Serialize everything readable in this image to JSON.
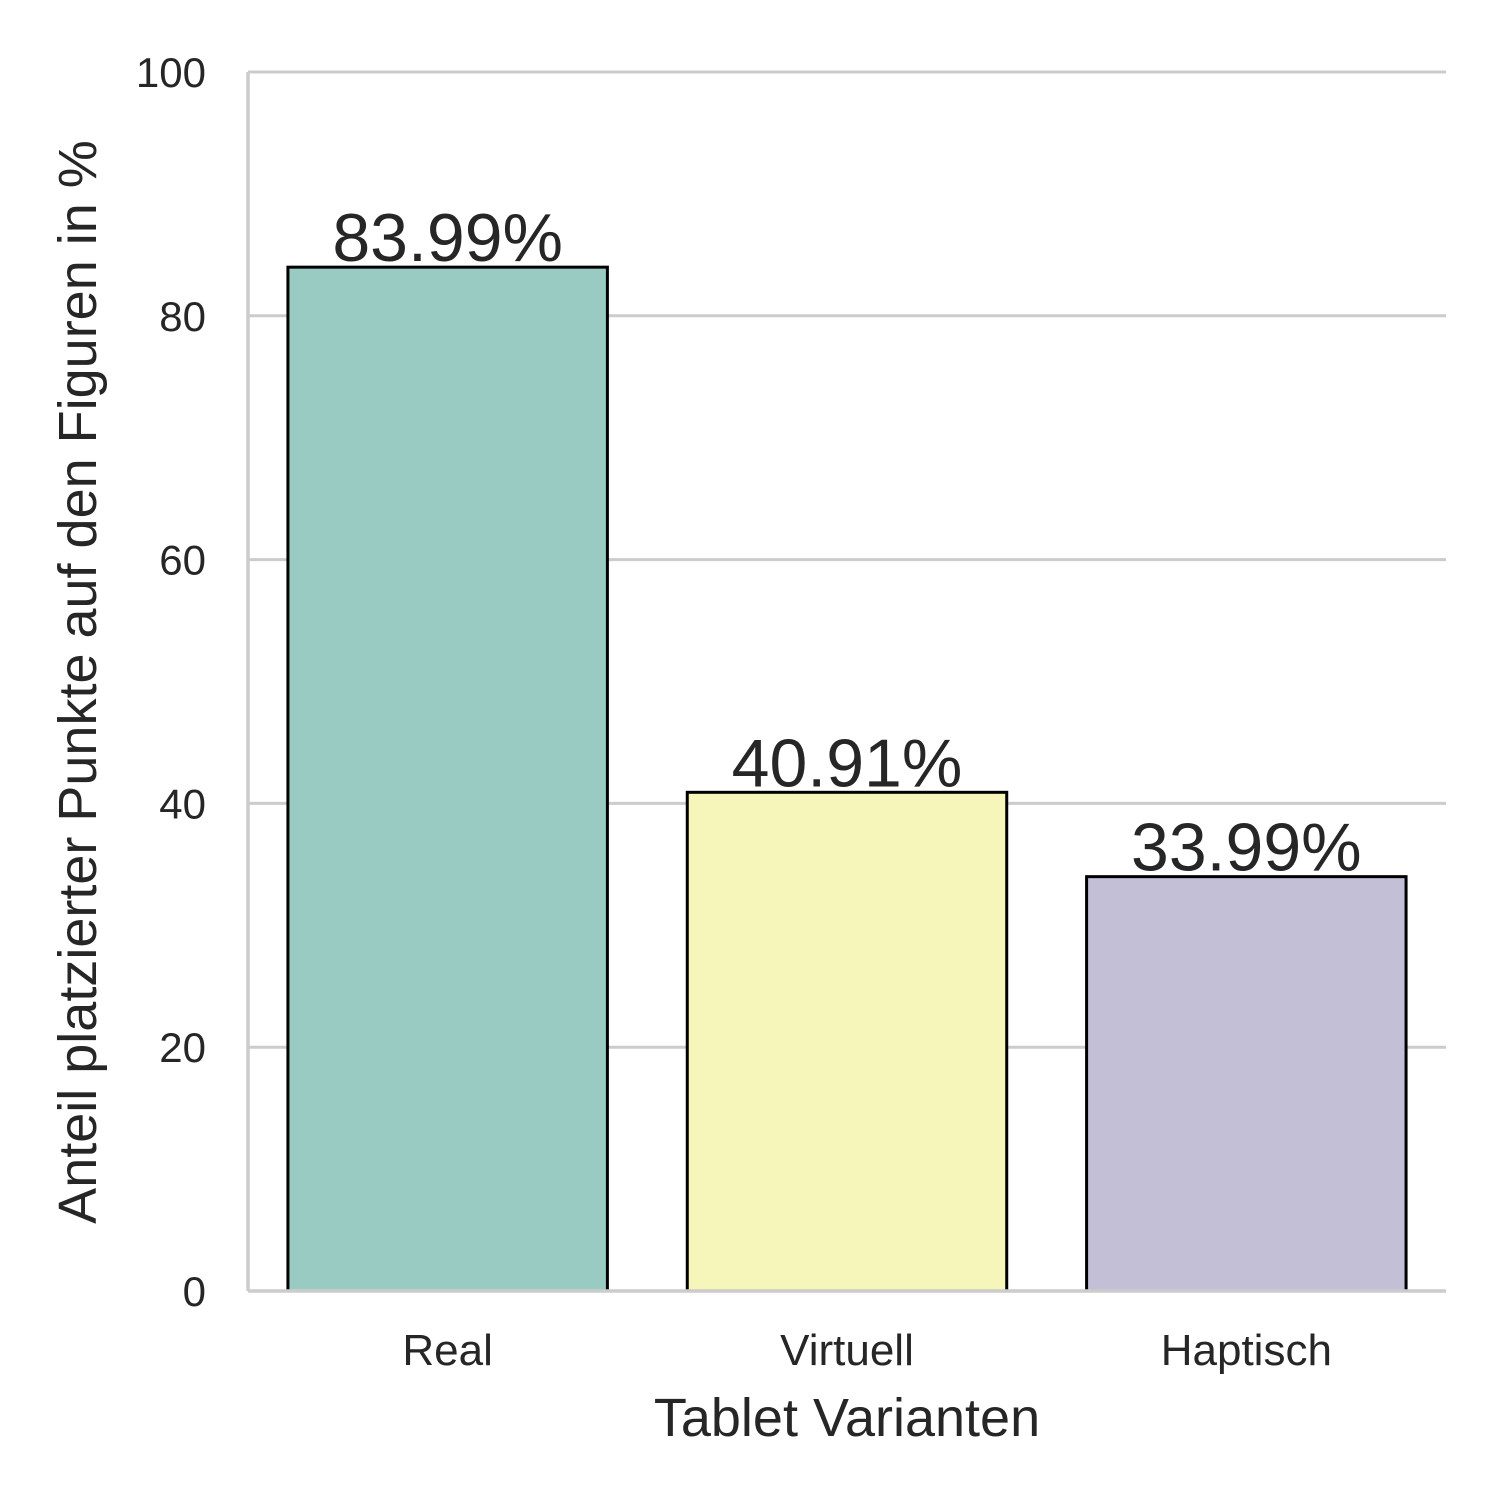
{
  "chart_data": {
    "type": "bar",
    "title": "",
    "xlabel": "Tablet Varianten",
    "ylabel": "Anteil platzierter Punkte auf den Figuren in %",
    "categories": [
      "Real",
      "Virtuell",
      "Haptisch"
    ],
    "values": [
      83.99,
      40.91,
      33.99
    ],
    "data_labels": [
      "83.99%",
      "40.91%",
      "33.99%"
    ],
    "colors": [
      "#99cbc3",
      "#f6f6bb",
      "#c2bfd7"
    ],
    "ylim": [
      0,
      100
    ],
    "yticks": [
      0,
      20,
      40,
      60,
      80,
      100
    ],
    "grid": "horizontal",
    "legend": "none"
  }
}
